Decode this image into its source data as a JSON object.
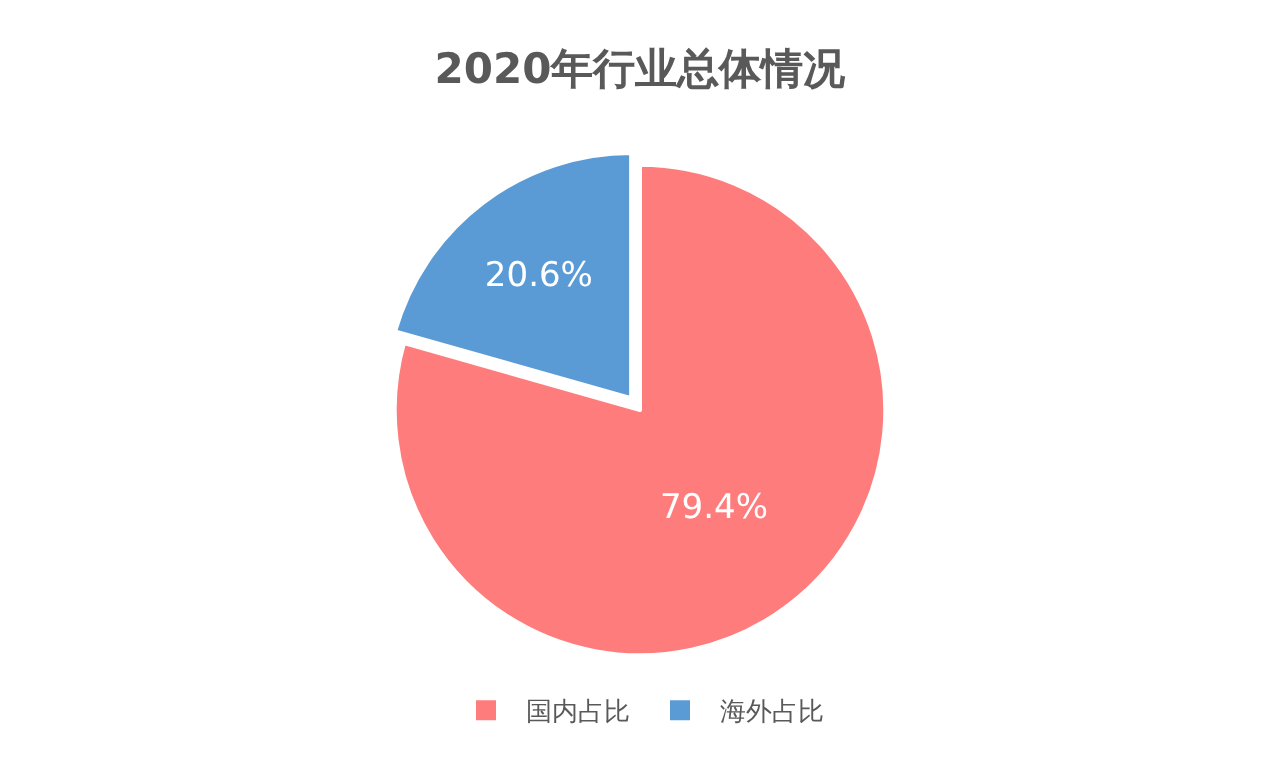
{
  "chart_data": {
    "type": "pie",
    "title": "2020年行业总体情况",
    "categories": [
      "国内占比",
      "海外占比"
    ],
    "values": [
      79.4,
      20.6
    ],
    "colors": [
      "#ff7c7c",
      "#5b9bd5"
    ],
    "value_labels": [
      "79.4%",
      "20.6%"
    ],
    "legend": "bottom"
  }
}
